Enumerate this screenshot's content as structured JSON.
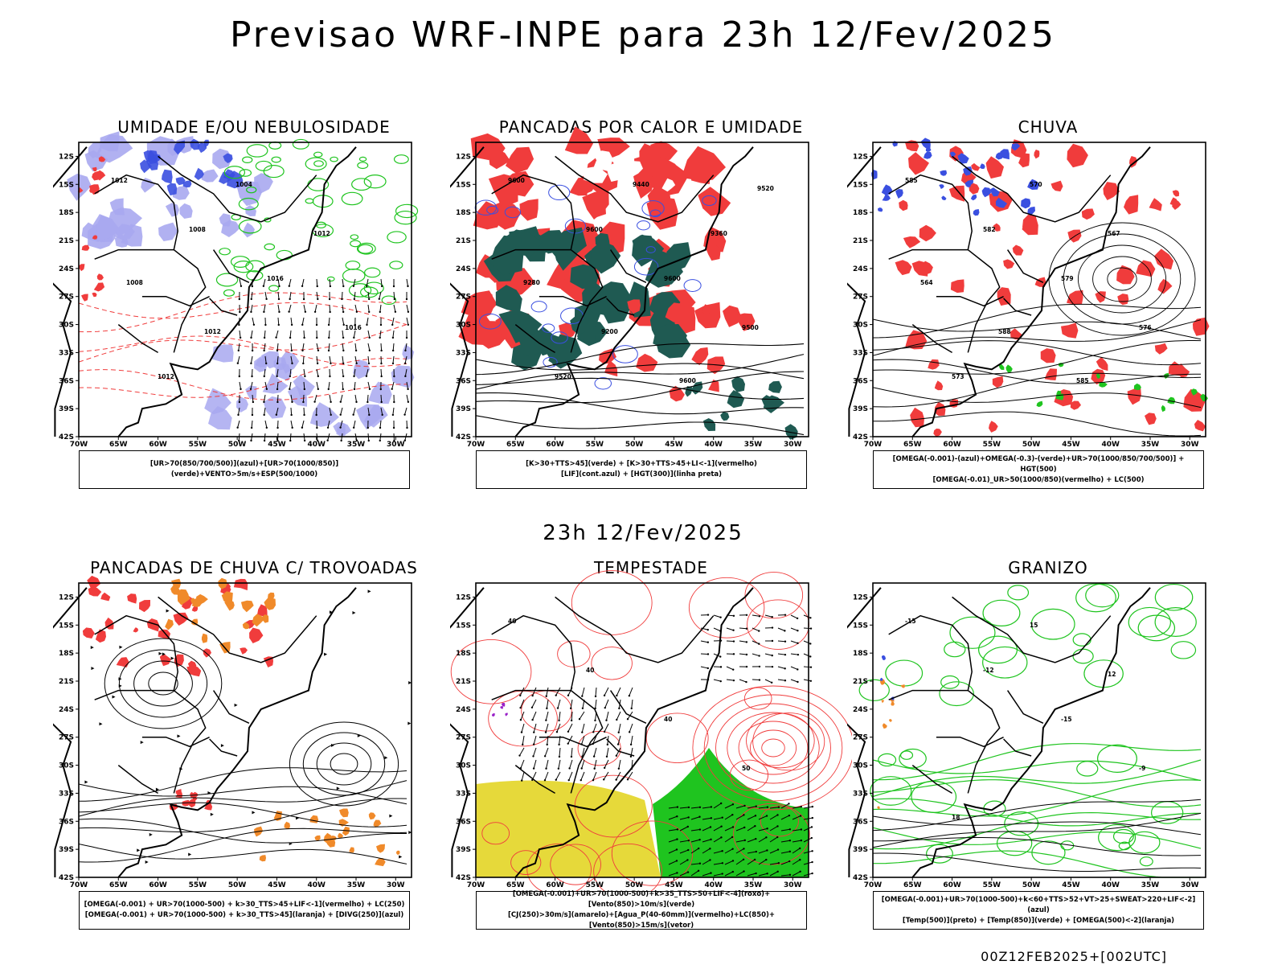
{
  "header": {
    "title": "Previsao WRF-INPE  para 23h 12/Fev/2025"
  },
  "middle": {
    "title": "23h 12/Fev/2025"
  },
  "footer": {
    "run": "00Z12FEB2025+[002UTC]"
  },
  "axes": {
    "lat_labels": [
      "12S",
      "15S",
      "18S",
      "21S",
      "24S",
      "27S",
      "30S",
      "33S",
      "36S",
      "39S",
      "42S"
    ],
    "lon_labels": [
      "70W",
      "65W",
      "60W",
      "55W",
      "50W",
      "45W",
      "40W",
      "35W",
      "30W"
    ]
  },
  "panels": [
    {
      "title": "UMIDADE E/OU NEBULOSIDADE",
      "legend": [
        "[UR>70(850/700/500)](azul)+[UR>70(1000/850)](verde)+VENTO>5m/s+ESP(500/1000)"
      ],
      "contour_labels": [
        "1012",
        "1008",
        "1016",
        "1016",
        "1012",
        "1004",
        "1012",
        "1008",
        "1012"
      ]
    },
    {
      "title": "PANCADAS POR CALOR E UMIDADE",
      "legend": [
        "[K>30+TTS>45](verde) + [K>30+TTS>45+LI<-1](vermelho)",
        "[LIF](cont.azul) + [HGT(300)](linha preta)"
      ],
      "contour_labels": [
        "9600",
        "9600",
        "9600",
        "9500",
        "9520",
        "9440",
        "9360",
        "9280",
        "9200",
        "9600",
        "9520"
      ]
    },
    {
      "title": "CHUVA",
      "legend": [
        "[OMEGA(-0.001)-(azul)+OMEGA(-0.3)-(verde)+UR>70(1000/850/700/500)] + HGT(500)",
        "[OMEGA(-0.01)_UR>50(1000/850)(vermelho) + LC(500)"
      ],
      "contour_labels": [
        "585",
        "582",
        "579",
        "576",
        "573",
        "570",
        "567",
        "564",
        "588",
        "585"
      ]
    },
    {
      "title": "PANCADAS DE CHUVA C/ TROVOADAS",
      "legend": [
        "[OMEGA(-0.001) + UR>70(1000-500) + k>30_TTS>45+LIF<-1](vermelho) + LC(250)",
        "[OMEGA(-0.001) + UR>70(1000-500) + k>30_TTS>45](laranja) + [DIVG(250)](azul)"
      ],
      "contour_labels": []
    },
    {
      "title": "TEMPESTADE",
      "legend": [
        "[OMEGA(-0.001)+UR>70(1000-500)+k>35_TTS>50+LIF<-4](roxo)+[Vento(850)>10m/s](verde)",
        "[CJ(250)>30m/s](amarelo)+[Agua_P(40-60mm)](vermelho)+LC(850)+[Vento(850)>15m/s](vetor)"
      ],
      "contour_labels": [
        "40",
        "40",
        "40",
        "50"
      ]
    },
    {
      "title": "GRANIZO",
      "legend": [
        "[OMEGA(-0.001)+UR>70(1000-500)+k<60+TTS>52+VT>25+SWEAT>220+LIF<-2](azul)",
        "[Temp(500)](preto) + [Temp(850)](verde) + [OMEGA(500)<-2](laranja)"
      ],
      "contour_labels": [
        "-15",
        "-12",
        "-15",
        "-9",
        "18",
        "15",
        "12"
      ]
    }
  ],
  "colors": {
    "blue": "#3a4fe0",
    "lightblue": "#a8a8f0",
    "green": "#1fc41f",
    "red": "#f03c3c",
    "darkgreen": "#1f5a52",
    "orange": "#f08a2a",
    "yellow": "#e6d93a",
    "purple": "#9a22c8"
  }
}
